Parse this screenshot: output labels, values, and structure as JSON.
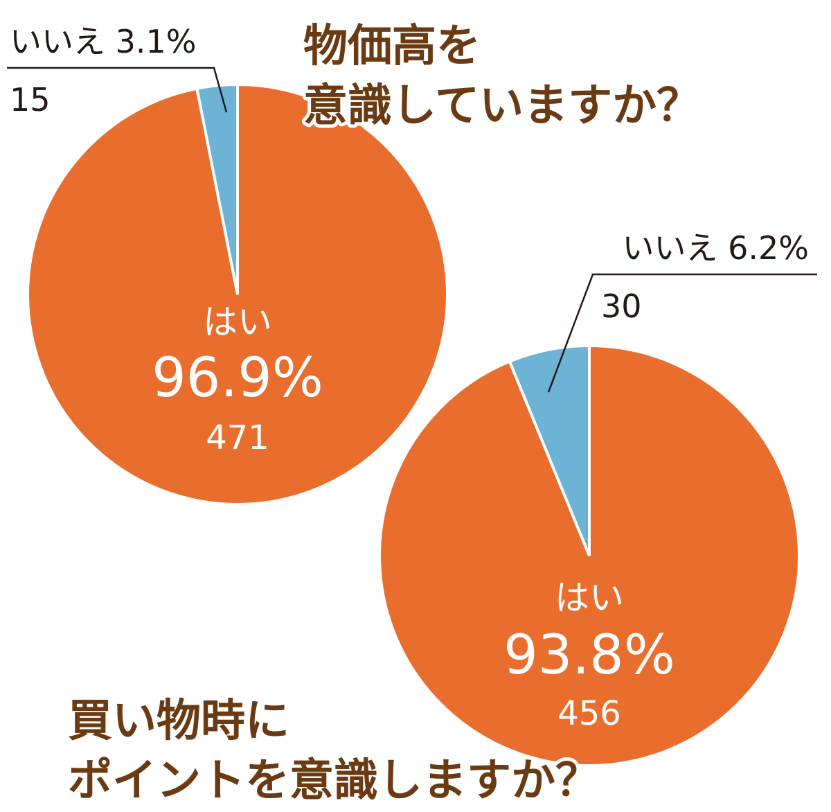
{
  "colors": {
    "yes": "#e96e2d",
    "no": "#6db3d6",
    "title": "#6a3a12",
    "text": "#231815"
  },
  "chart_data": [
    {
      "type": "pie",
      "title": [
        "物価高を",
        "意識していますか？"
      ],
      "slices": [
        {
          "name": "はい",
          "percent": 96.9,
          "count": 471,
          "percent_label": "96.9%",
          "count_label": "471"
        },
        {
          "name": "いいえ",
          "percent": 3.1,
          "count": 15,
          "percent_label": "いいえ 3.1%",
          "count_label": "15"
        }
      ]
    },
    {
      "type": "pie",
      "title": [
        "買い物時に",
        "ポイントを意識しますか？"
      ],
      "slices": [
        {
          "name": "はい",
          "percent": 93.8,
          "count": 456,
          "percent_label": "93.8%",
          "count_label": "456"
        },
        {
          "name": "いいえ",
          "percent": 6.2,
          "count": 30,
          "percent_label": "いいえ 6.2%",
          "count_label": "30"
        }
      ]
    }
  ]
}
